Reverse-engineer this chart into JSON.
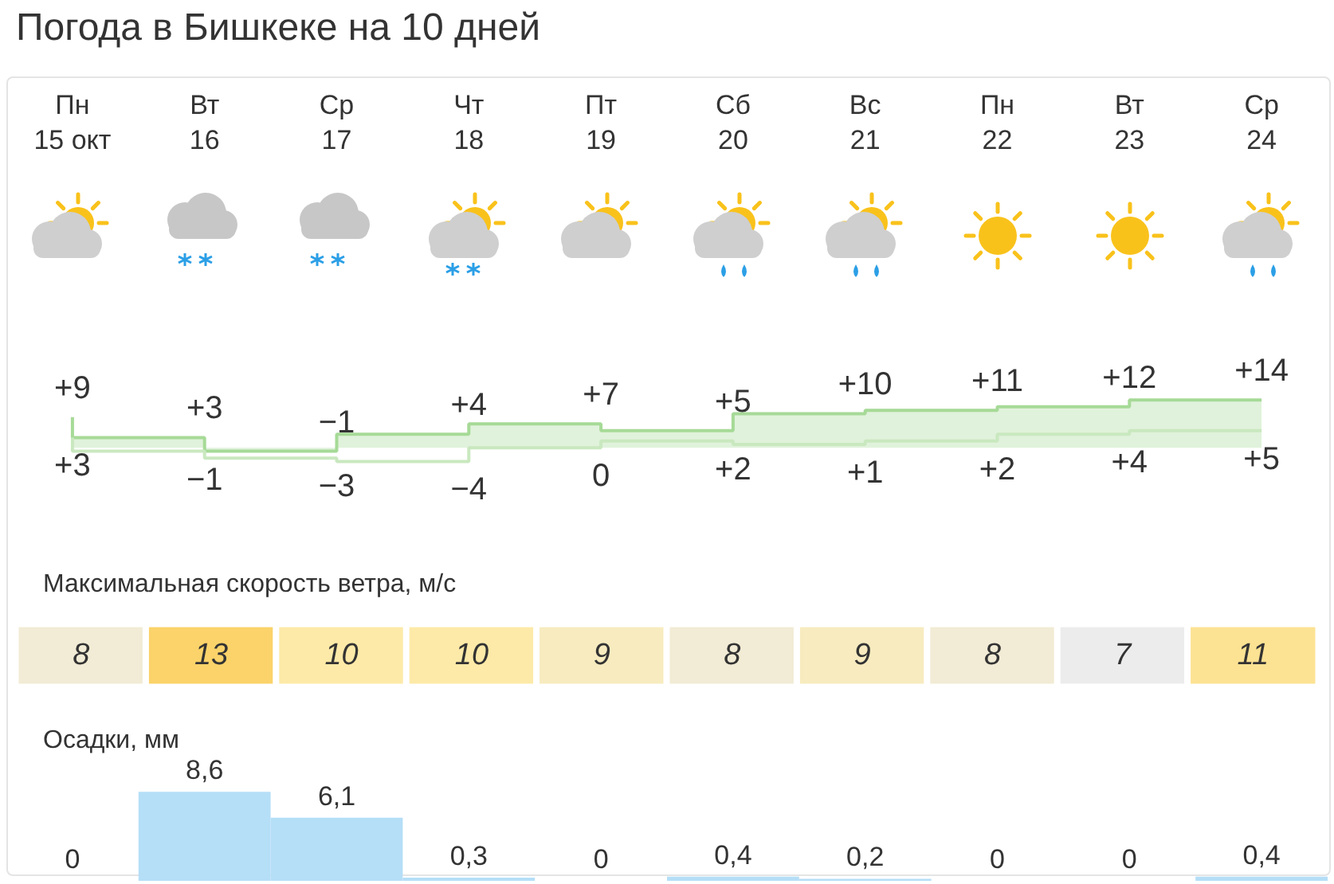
{
  "chart_data": [
    {
      "type": "step",
      "title": "Погода в Бишкеке на 10 дней",
      "categories": [
        "Пн\n15 окт",
        "Вт\n16",
        "Ср\n17",
        "Чт\n18",
        "Пт\n19",
        "Сб\n20",
        "Вс\n21",
        "Пн\n22",
        "Вт\n23",
        "Ср\n24"
      ],
      "tick_labels": "x",
      "marker": "none",
      "series": [
        {
          "color": "#a6da97",
          "values": [
            9,
            3,
            -1,
            4,
            7,
            5,
            10,
            11,
            12,
            14
          ],
          "value_labels": [
            "+9",
            "+3",
            "−1",
            "+4",
            "+7",
            "+5",
            "+10",
            "+11",
            "+12",
            "+14"
          ]
        },
        {
          "color": "#c9e8bf",
          "values": [
            3,
            -1,
            -3,
            -4,
            0,
            2,
            1,
            2,
            4,
            5
          ],
          "value_labels": [
            "+3",
            "−1",
            "−3",
            "−4",
            "0",
            "+2",
            "+1",
            "+2",
            "+4",
            "+5"
          ]
        }
      ]
    },
    {
      "type": "heatmap",
      "title": "Максимальная скорость ветра, м/с",
      "categories": [
        null,
        null,
        null,
        null,
        null,
        null,
        null,
        null,
        null,
        null
      ],
      "y_categories": [
        null
      ],
      "tick_labels": false,
      "cells": [
        [
          8,
          13,
          10,
          10,
          9,
          8,
          9,
          8,
          7,
          11
        ]
      ],
      "data_labels": true
    },
    {
      "type": "bar",
      "title": "Осадки, мм",
      "categories": [
        null,
        null,
        null,
        null,
        null,
        null,
        null,
        null,
        null,
        null
      ],
      "tick_labels": false,
      "color": "#b5def7",
      "values": [
        0,
        8.6,
        6.1,
        0.3,
        0,
        0.4,
        0.2,
        0,
        0,
        0.4
      ],
      "value_labels": [
        "0",
        "8,6",
        "6,1",
        "0,3",
        "0",
        "0,4",
        "0,2",
        "0",
        "0",
        "0,4"
      ]
    }
  ]
}
